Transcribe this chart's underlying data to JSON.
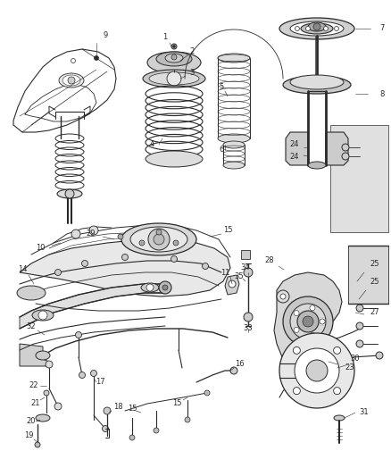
{
  "bg_color": "#ffffff",
  "fig_width": 4.38,
  "fig_height": 5.33,
  "dpi": 100,
  "line_color": "#2a2a2a",
  "gray_light": "#c8c8c8",
  "gray_mid": "#999999",
  "gray_dark": "#555555",
  "label_fontsize": 6.0,
  "lw_main": 0.7,
  "lw_thick": 1.2,
  "lw_thin": 0.4
}
